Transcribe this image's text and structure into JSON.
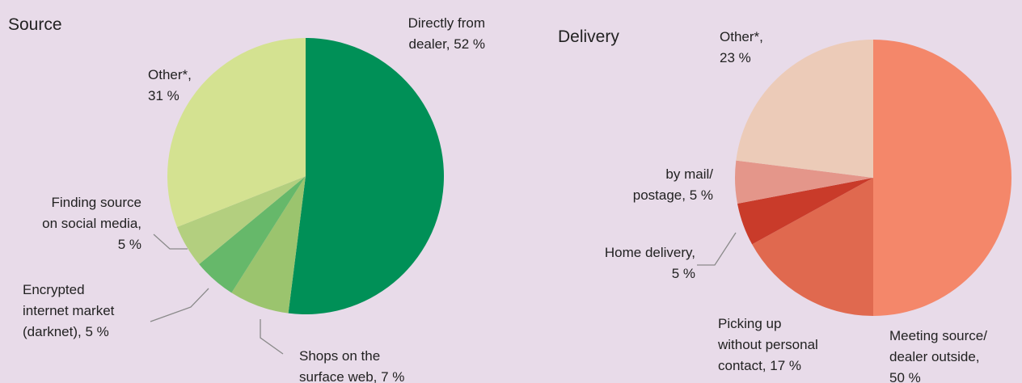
{
  "chart_data": [
    {
      "type": "pie",
      "title": "Source",
      "labels": [
        [
          "Directly from",
          "dealer, 52 %"
        ],
        [
          "Shops on the",
          "surface web, 7 %"
        ],
        [
          "Encrypted",
          "internet market",
          "(darknet), 5 %"
        ],
        [
          "Finding source",
          "on social media,",
          "5 %"
        ],
        [
          "Other*,",
          "31 %"
        ]
      ],
      "values": [
        52,
        7,
        5,
        5,
        31
      ],
      "colors": [
        "#009057",
        "#9bc46e",
        "#66b86a",
        "#b3cf7f",
        "#d4e291"
      ]
    },
    {
      "type": "pie",
      "title": "Delivery",
      "labels": [
        [
          "Meeting source/",
          "dealer outside,",
          "50 %"
        ],
        [
          "Picking up",
          "without personal",
          "contact, 17 %"
        ],
        [
          "Home delivery,",
          "5 %"
        ],
        [
          "by mail/",
          "postage, 5 %"
        ],
        [
          "Other*,",
          "23 %"
        ]
      ],
      "values": [
        50,
        17,
        5,
        5,
        23
      ],
      "colors": [
        "#f4876a",
        "#e0694f",
        "#c93b2a",
        "#e4968a",
        "#eccbb8"
      ]
    }
  ]
}
